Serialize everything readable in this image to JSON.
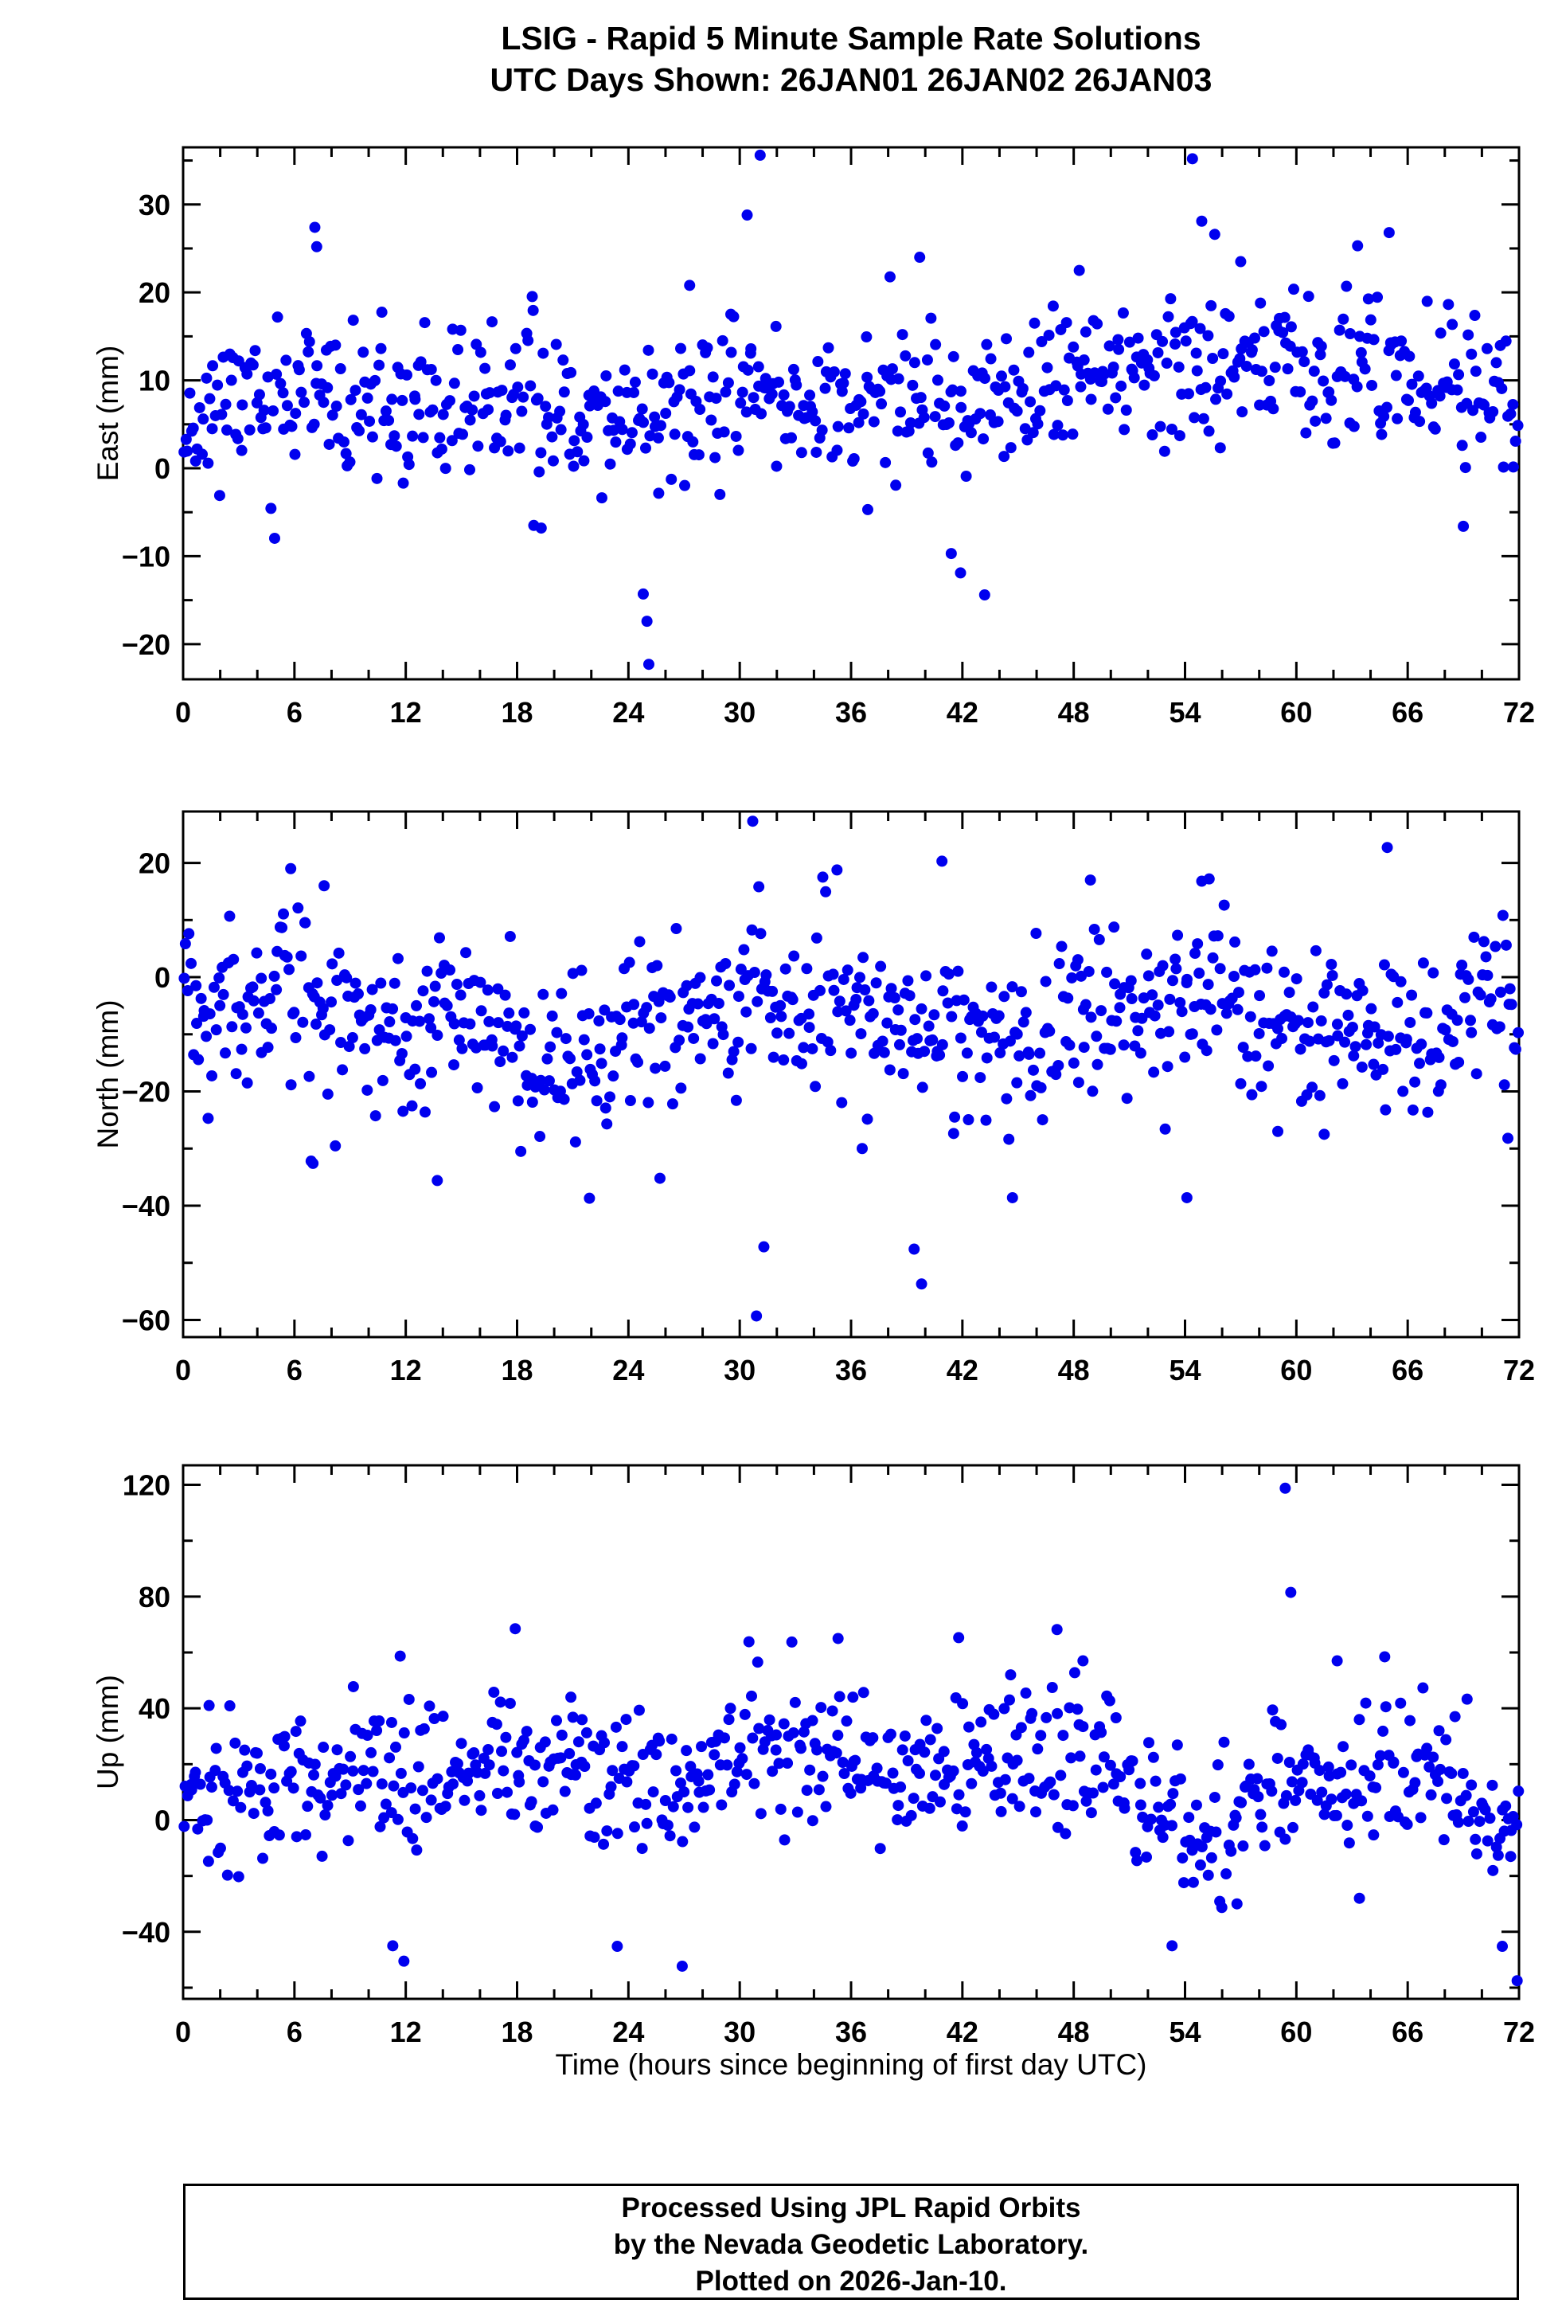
{
  "header": {
    "title1": "LSIG - Rapid 5 Minute Sample Rate Solutions",
    "title2": "UTC Days Shown:  26JAN01 26JAN02 26JAN03"
  },
  "footer": {
    "lines": [
      "Processed Using JPL Rapid Orbits",
      "by the Nevada Geodetic Laboratory.",
      "Plotted on 2026-Jan-10."
    ]
  },
  "chart_data": {
    "type": "scatter",
    "title": "LSIG - Rapid 5 Minute Sample Rate Solutions",
    "subtitle": "UTC Days Shown:  26JAN01 26JAN02 26JAN03",
    "point_color": "#0000EE",
    "point_radius": 7,
    "frame_color": "#000000",
    "x": {
      "min": 0,
      "max": 72,
      "major_ticks": [
        0,
        6,
        12,
        18,
        24,
        30,
        36,
        42,
        48,
        54,
        60,
        66,
        72
      ],
      "minor_step": 2,
      "label": "Time (hours since beginning of first day UTC)"
    },
    "panels": [
      {
        "id": "east",
        "ylabel": "East (mm)",
        "ylim": [
          -24,
          36.5
        ],
        "y_major": [
          -20,
          -10,
          0,
          10,
          20,
          30
        ],
        "y_minor_step": 5,
        "count": 680,
        "seed": 11,
        "sd": 4.2,
        "mean_points": [
          [
            0,
            5.5
          ],
          [
            4,
            8
          ],
          [
            8,
            7.5
          ],
          [
            12,
            6
          ],
          [
            16,
            7
          ],
          [
            20,
            7.5
          ],
          [
            24,
            5.5
          ],
          [
            28,
            7
          ],
          [
            32,
            9
          ],
          [
            36,
            7
          ],
          [
            40,
            7.5
          ],
          [
            44,
            6.5
          ],
          [
            48,
            10
          ],
          [
            52,
            11
          ],
          [
            56,
            13
          ],
          [
            60,
            12
          ],
          [
            64,
            11
          ],
          [
            68,
            11
          ],
          [
            71,
            8
          ],
          [
            72,
            5
          ]
        ],
        "outliers": [
          [
            7.1,
            27.4
          ],
          [
            7.2,
            25.2
          ],
          [
            18.9,
            -6.5
          ],
          [
            19.3,
            -6.8
          ],
          [
            24.8,
            -14.3
          ],
          [
            25.0,
            -17.4
          ],
          [
            25.1,
            -22.3
          ],
          [
            27.3,
            20.8
          ],
          [
            30.4,
            28.8
          ],
          [
            31.1,
            35.6
          ],
          [
            36.9,
            -4.7
          ],
          [
            39.7,
            24.0
          ],
          [
            41.4,
            -9.7
          ],
          [
            41.9,
            -11.9
          ],
          [
            43.2,
            -14.4
          ],
          [
            48.3,
            22.5
          ],
          [
            54.4,
            35.2
          ],
          [
            54.9,
            28.1
          ],
          [
            55.6,
            26.6
          ],
          [
            57.0,
            23.5
          ],
          [
            63.3,
            25.3
          ],
          [
            65.0,
            26.8
          ],
          [
            69.0,
            -6.6
          ]
        ]
      },
      {
        "id": "north",
        "ylabel": "North (mm)",
        "ylim": [
          -63,
          29
        ],
        "y_major": [
          -60,
          -40,
          -20,
          0,
          20
        ],
        "y_minor_step": 10,
        "count": 700,
        "seed": 22,
        "sd": 7,
        "mean_points": [
          [
            0,
            -2
          ],
          [
            3,
            -4
          ],
          [
            6,
            -1
          ],
          [
            9,
            -8
          ],
          [
            12,
            -11
          ],
          [
            15,
            -8
          ],
          [
            18,
            -12
          ],
          [
            21,
            -13
          ],
          [
            24,
            -9
          ],
          [
            27,
            -5
          ],
          [
            30,
            -4
          ],
          [
            33,
            -5
          ],
          [
            36,
            -6
          ],
          [
            39,
            -9
          ],
          [
            42,
            -11
          ],
          [
            45,
            -10
          ],
          [
            48,
            -5
          ],
          [
            51,
            -6
          ],
          [
            54,
            -2
          ],
          [
            57,
            -5
          ],
          [
            60,
            -10
          ],
          [
            63,
            -9
          ],
          [
            66,
            -11
          ],
          [
            69,
            -7
          ],
          [
            72,
            -4
          ]
        ],
        "outliers": [
          [
            6.9,
            -32.2
          ],
          [
            7.0,
            -32.6
          ],
          [
            5.8,
            19.0
          ],
          [
            7.6,
            16.0
          ],
          [
            13.7,
            -35.6
          ],
          [
            18.2,
            -30.5
          ],
          [
            21.9,
            -38.7
          ],
          [
            25.7,
            -35.2
          ],
          [
            30.7,
            27.3
          ],
          [
            30.9,
            -59.3
          ],
          [
            31.3,
            -47.2
          ],
          [
            36.6,
            -30.0
          ],
          [
            39.4,
            -47.6
          ],
          [
            39.8,
            -53.7
          ],
          [
            40.9,
            20.3
          ],
          [
            44.7,
            -38.6
          ],
          [
            48.9,
            17.0
          ],
          [
            54.1,
            -38.6
          ],
          [
            54.9,
            16.8
          ],
          [
            55.3,
            17.2
          ],
          [
            59.0,
            -27.0
          ],
          [
            61.5,
            -27.5
          ],
          [
            64.9,
            22.7
          ],
          [
            71.4,
            -28.2
          ]
        ]
      },
      {
        "id": "up",
        "ylabel": "Up (mm)",
        "ylim": [
          -64,
          127
        ],
        "y_major": [
          -40,
          0,
          40,
          80,
          120
        ],
        "y_minor_step": 20,
        "count": 660,
        "seed": 33,
        "sd": 13,
        "mean_points": [
          [
            0,
            5
          ],
          [
            3,
            10
          ],
          [
            6,
            12
          ],
          [
            9,
            18
          ],
          [
            12,
            15
          ],
          [
            15,
            14
          ],
          [
            18,
            18
          ],
          [
            21,
            15
          ],
          [
            24,
            13
          ],
          [
            27,
            8
          ],
          [
            30,
            22
          ],
          [
            33,
            25
          ],
          [
            36,
            22
          ],
          [
            39,
            16
          ],
          [
            42,
            18
          ],
          [
            45,
            22
          ],
          [
            48,
            30
          ],
          [
            51,
            15
          ],
          [
            53,
            -2
          ],
          [
            55,
            -5
          ],
          [
            57,
            2
          ],
          [
            59,
            15
          ],
          [
            61,
            12
          ],
          [
            63,
            8
          ],
          [
            65,
            18
          ],
          [
            67,
            20
          ],
          [
            69,
            8
          ],
          [
            71,
            0
          ],
          [
            72,
            -5
          ]
        ],
        "outliers": [
          [
            1.4,
            41.0
          ],
          [
            11.3,
            -45.0
          ],
          [
            11.7,
            58.7
          ],
          [
            11.9,
            -50.5
          ],
          [
            17.9,
            68.5
          ],
          [
            20.9,
            44.0
          ],
          [
            23.4,
            -45.2
          ],
          [
            26.9,
            -52.3
          ],
          [
            35.3,
            65.0
          ],
          [
            36.1,
            44.0
          ],
          [
            41.8,
            65.3
          ],
          [
            44.6,
            52.0
          ],
          [
            47.1,
            68.2
          ],
          [
            48.5,
            57.0
          ],
          [
            53.3,
            -45.0
          ],
          [
            56.8,
            -30.0
          ],
          [
            59.4,
            118.8
          ],
          [
            59.7,
            81.5
          ],
          [
            62.2,
            57.0
          ],
          [
            63.4,
            -28.0
          ],
          [
            71.1,
            -45.2
          ],
          [
            71.9,
            -57.5
          ]
        ]
      }
    ]
  }
}
